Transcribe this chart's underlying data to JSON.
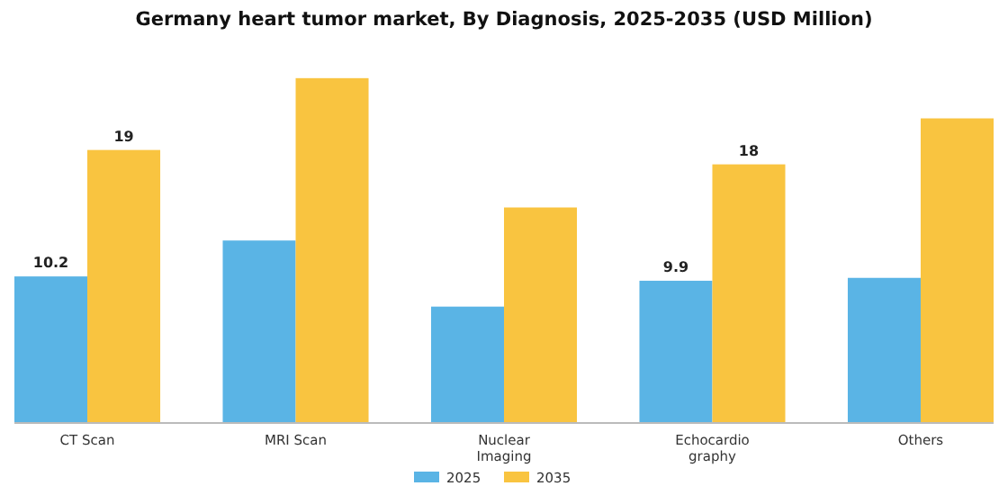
{
  "chart_data": {
    "type": "bar",
    "title": "Germany heart tumor market, By Diagnosis, 2025-2035 (USD Million)",
    "categories": [
      "CT Scan",
      "MRI Scan",
      "Nuclear Imaging",
      "Echocardiography",
      "Others"
    ],
    "series": [
      {
        "name": "2025",
        "color": "#5ab4e5",
        "values": [
          10.2,
          12.7,
          8.1,
          9.9,
          10.1
        ],
        "value_labels": [
          "10.2",
          null,
          null,
          "9.9",
          null
        ]
      },
      {
        "name": "2035",
        "color": "#f9c440",
        "values": [
          19,
          24.0,
          15.0,
          18,
          21.2
        ],
        "value_labels": [
          "19",
          null,
          null,
          "18",
          null
        ]
      }
    ],
    "legend": "bottom",
    "grid": false
  }
}
